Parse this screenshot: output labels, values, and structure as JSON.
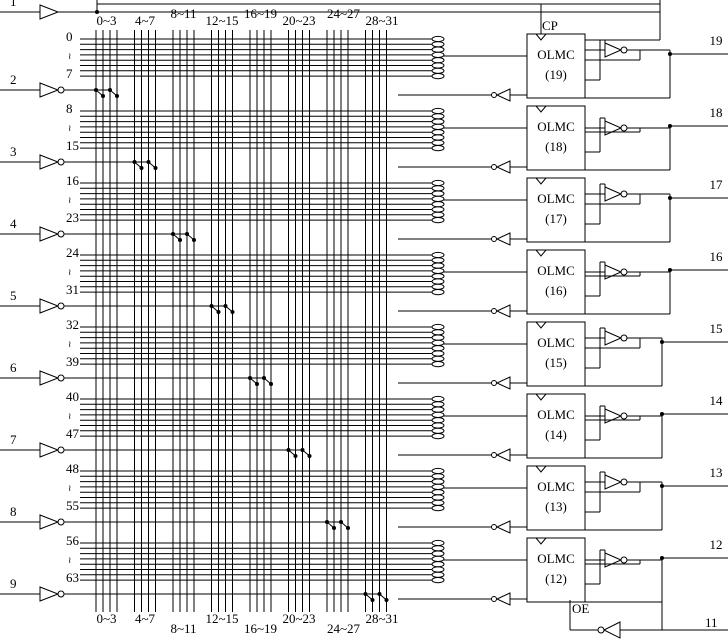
{
  "input_pins": [
    "1",
    "2",
    "3",
    "4",
    "5",
    "6",
    "7",
    "8",
    "9"
  ],
  "output_pins": [
    "19",
    "18",
    "17",
    "16",
    "15",
    "14",
    "13",
    "12"
  ],
  "oe_pin": "11",
  "column_labels": [
    "0~3",
    "4~7",
    "8~11",
    "12~15",
    "16~19",
    "20~23",
    "24~27",
    "28~31"
  ],
  "row_labels": [
    [
      "0",
      "7"
    ],
    [
      "8",
      "15"
    ],
    [
      "16",
      "23"
    ],
    [
      "24",
      "31"
    ],
    [
      "32",
      "39"
    ],
    [
      "40",
      "47"
    ],
    [
      "48",
      "55"
    ],
    [
      "56",
      "63"
    ]
  ],
  "row_separator": "≀",
  "olmc": {
    "label": "OLMC",
    "numbers": [
      "(19)",
      "(18)",
      "(17)",
      "(16)",
      "(15)",
      "(14)",
      "(13)",
      "(12)"
    ]
  },
  "cp": "CP",
  "oe": "OE"
}
